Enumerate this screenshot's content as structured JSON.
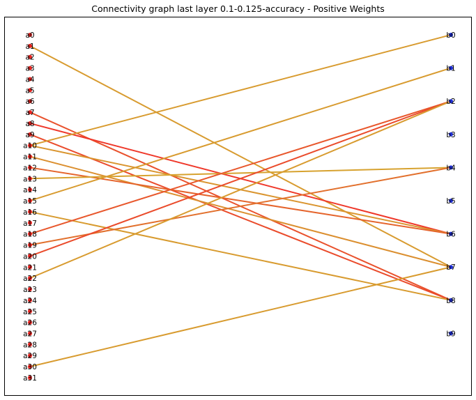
{
  "title": "Connectivity graph last layer 0.1-0.125-accuracy - Positive Weights",
  "colors": {
    "left_node": "#e8231f",
    "right_node": "#1f2fd8",
    "edge_low": "#d4ae30",
    "edge_high": "#f0322a"
  },
  "chart_data": {
    "type": "bipartite-graph",
    "left_nodes": [
      "a0",
      "a1",
      "a2",
      "a3",
      "a4",
      "a5",
      "a6",
      "a7",
      "a8",
      "a9",
      "a10",
      "a11",
      "a12",
      "a13",
      "a14",
      "a15",
      "a16",
      "a17",
      "a18",
      "a19",
      "a20",
      "a21",
      "a22",
      "a23",
      "a24",
      "a25",
      "a26",
      "a27",
      "a28",
      "a29",
      "a30",
      "a31"
    ],
    "right_nodes": [
      "b0",
      "b1",
      "b2",
      "b3",
      "b4",
      "b5",
      "b6",
      "b7",
      "b8",
      "b9"
    ],
    "edges": [
      {
        "from": "a1",
        "to": "b7",
        "weight": 0.15
      },
      {
        "from": "a7",
        "to": "b8",
        "weight": 0.75
      },
      {
        "from": "a8",
        "to": "b6",
        "weight": 0.95
      },
      {
        "from": "a9",
        "to": "b8",
        "weight": 0.8
      },
      {
        "from": "a10",
        "to": "b0",
        "weight": 0.15
      },
      {
        "from": "a10",
        "to": "b6",
        "weight": 0.2
      },
      {
        "from": "a11",
        "to": "b7",
        "weight": 0.25
      },
      {
        "from": "a12",
        "to": "b6",
        "weight": 0.6
      },
      {
        "from": "a13",
        "to": "b4",
        "weight": 0.1
      },
      {
        "from": "a15",
        "to": "b1",
        "weight": 0.15
      },
      {
        "from": "a16",
        "to": "b8",
        "weight": 0.15
      },
      {
        "from": "a18",
        "to": "b2",
        "weight": 0.7
      },
      {
        "from": "a19",
        "to": "b4",
        "weight": 0.5
      },
      {
        "from": "a20",
        "to": "b2",
        "weight": 0.8
      },
      {
        "from": "a22",
        "to": "b2",
        "weight": 0.15
      },
      {
        "from": "a30",
        "to": "b7",
        "weight": 0.15
      }
    ]
  }
}
